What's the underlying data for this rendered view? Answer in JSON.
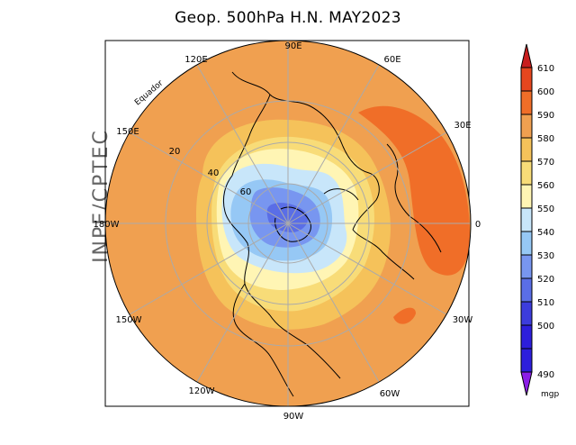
{
  "title": "Geop. 500hPa H.N. MAY2023",
  "brand": "INPE/CPTEC",
  "equator_label": "Equador",
  "longitude_labels": [
    "90E",
    "60E",
    "30E",
    "0",
    "30W",
    "60W",
    "90W",
    "120W",
    "150W",
    "180W",
    "150E",
    "120E"
  ],
  "latitude_labels": [
    "20",
    "40",
    "60"
  ],
  "colorbar": {
    "unit": "mgp",
    "levels": [
      "610",
      "600",
      "590",
      "580",
      "570",
      "560",
      "550",
      "540",
      "530",
      "520",
      "510",
      "500",
      "490"
    ],
    "colors": {
      "above_610": "#c81e1e",
      "600_610": "#e6461e",
      "590_600": "#f06e28",
      "580_590": "#f0a050",
      "570_580": "#f5c25a",
      "560_570": "#f8dc78",
      "550_560": "#fff5b4",
      "540_550": "#c8e6fa",
      "530_540": "#96c8f5",
      "520_530": "#7896f0",
      "510_520": "#5a6ee6",
      "500_510": "#3c3cdc",
      "490_500": "#2d1edc",
      "below_490": "#8c1ee6"
    }
  }
}
